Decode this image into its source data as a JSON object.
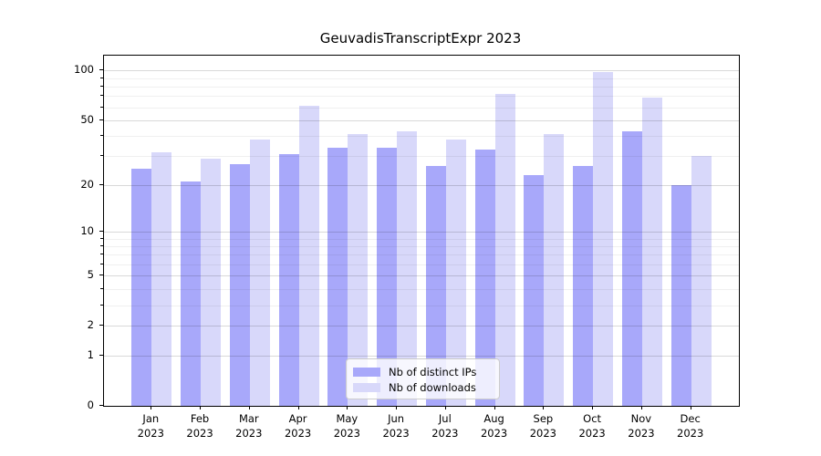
{
  "title": "GeuvadisTranscriptExpr 2023",
  "colors": {
    "background": "#ffffff",
    "axis": "#000000",
    "bar_ips": "#a8a8fa",
    "bar_downloads": "#d8d8fa",
    "grid_major": "#d9d9d9",
    "grid_minor": "#efefef",
    "legend_border": "#cccccc",
    "text": "#000000"
  },
  "chart_data": {
    "type": "bar",
    "title": "GeuvadisTranscriptExpr 2023",
    "categories": [
      "Jan",
      "Feb",
      "Mar",
      "Apr",
      "May",
      "Jun",
      "Jul",
      "Aug",
      "Sep",
      "Oct",
      "Nov",
      "Dec"
    ],
    "x_year_label": "2023",
    "series": [
      {
        "name": "Nb of distinct IPs",
        "color": "#a8a8fa",
        "values": [
          25,
          21,
          27,
          31,
          34,
          34,
          26,
          33,
          23,
          26,
          43,
          20
        ]
      },
      {
        "name": "Nb of downloads",
        "color": "#d8d8fa",
        "values": [
          32,
          29,
          38,
          61,
          41,
          43,
          38,
          72,
          41,
          98,
          69,
          30
        ]
      }
    ],
    "xlabel": "",
    "ylabel": "",
    "y_scale": "log10(1+y)",
    "y_ticks": [
      0,
      1,
      2,
      5,
      10,
      20,
      50,
      100
    ],
    "y_minor_ticks": [
      3,
      4,
      6,
      7,
      8,
      9,
      30,
      40,
      60,
      70,
      80,
      90
    ],
    "ylim": [
      0,
      123
    ],
    "grid": true,
    "legend_position": "lower center"
  }
}
